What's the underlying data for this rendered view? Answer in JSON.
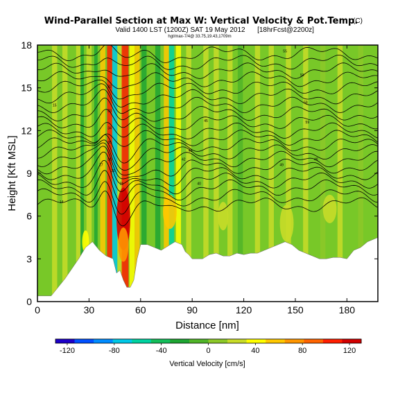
{
  "header": {
    "title": "Wind-Parallel Section at Max W: Vertical Velocity & Pot.Temp.",
    "title_mark": "(C)",
    "valid": "Valid 1400 LST (1200Z) SAT 19 May 2012",
    "forecast": "[18hrFcst@2200z]",
    "small_note": "hgt/max-7/4@ 33.75,19.43,1709m"
  },
  "chart_data": {
    "type": "heatmap",
    "xlabel": "Distance [nm]",
    "ylabel": "Height [Kft MSL]",
    "xlim": [
      0,
      198
    ],
    "ylim": [
      0,
      18
    ],
    "x_ticks": [
      "0",
      "30",
      "60",
      "90",
      "120",
      "150",
      "180"
    ],
    "x_tick_values": [
      0,
      30,
      60,
      90,
      120,
      150,
      180
    ],
    "y_ticks": [
      "0",
      "3",
      "6",
      "9",
      "12",
      "15",
      "18"
    ],
    "y_tick_values": [
      0,
      3,
      6,
      9,
      12,
      15,
      18
    ],
    "grid": false,
    "terrain_top_kft": [
      [
        0,
        0.4
      ],
      [
        8,
        0.4
      ],
      [
        12,
        1.0
      ],
      [
        16,
        1.6
      ],
      [
        20,
        2.3
      ],
      [
        24,
        3.0
      ],
      [
        28,
        3.8
      ],
      [
        32,
        4.2
      ],
      [
        36,
        3.6
      ],
      [
        40,
        3.2
      ],
      [
        44,
        3.0
      ],
      [
        46,
        2.0
      ],
      [
        48,
        2.2
      ],
      [
        50,
        1.5
      ],
      [
        52,
        1.0
      ],
      [
        54,
        1.0
      ],
      [
        56,
        1.5
      ],
      [
        58,
        3.0
      ],
      [
        60,
        4.0
      ],
      [
        64,
        4.0
      ],
      [
        68,
        3.8
      ],
      [
        72,
        3.6
      ],
      [
        76,
        3.9
      ],
      [
        80,
        4.2
      ],
      [
        84,
        4.0
      ],
      [
        86,
        3.5
      ],
      [
        88,
        3.3
      ],
      [
        90,
        3.0
      ],
      [
        96,
        3.0
      ],
      [
        100,
        3.3
      ],
      [
        104,
        3.4
      ],
      [
        108,
        3.2
      ],
      [
        112,
        3.2
      ],
      [
        116,
        3.4
      ],
      [
        120,
        3.3
      ],
      [
        124,
        3.4
      ],
      [
        128,
        3.4
      ],
      [
        132,
        3.6
      ],
      [
        136,
        3.8
      ],
      [
        140,
        4.0
      ],
      [
        144,
        4.2
      ],
      [
        148,
        4.0
      ],
      [
        152,
        3.6
      ],
      [
        156,
        3.4
      ],
      [
        160,
        3.2
      ],
      [
        164,
        3.0
      ],
      [
        168,
        3.0
      ],
      [
        172,
        3.1
      ],
      [
        176,
        3.1
      ],
      [
        180,
        3.0
      ],
      [
        184,
        3.6
      ],
      [
        188,
        3.8
      ],
      [
        192,
        4.2
      ],
      [
        198,
        4.5
      ]
    ],
    "vertical_velocity_bands": [
      {
        "x": 10,
        "width": 3,
        "w": 20
      },
      {
        "x": 16,
        "width": 3,
        "w": 30
      },
      {
        "x": 24,
        "width": 3,
        "w": 25
      },
      {
        "x": 26,
        "width": 2,
        "w": -20
      },
      {
        "x": 30,
        "width": 3,
        "w": 30
      },
      {
        "x": 34,
        "width": 2,
        "w": -30
      },
      {
        "x": 38,
        "width": 3,
        "w": 50
      },
      {
        "x": 42,
        "width": 3,
        "w": 110
      },
      {
        "x": 45,
        "width": 3,
        "w": -70
      },
      {
        "x": 48,
        "width": 3,
        "w": 30
      },
      {
        "x": 51,
        "width": 4,
        "w": 110
      },
      {
        "x": 55,
        "width": 3,
        "w": 35
      },
      {
        "x": 58,
        "width": 3,
        "w": 60
      },
      {
        "x": 62,
        "width": 3,
        "w": -20
      },
      {
        "x": 70,
        "width": 3,
        "w": -25
      },
      {
        "x": 75,
        "width": 3,
        "w": 55
      },
      {
        "x": 78,
        "width": 3,
        "w": -60
      },
      {
        "x": 82,
        "width": 3,
        "w": 35
      },
      {
        "x": 88,
        "width": 3,
        "w": 30
      },
      {
        "x": 98,
        "width": 3,
        "w": 25
      },
      {
        "x": 104,
        "width": 3,
        "w": 30
      },
      {
        "x": 112,
        "width": 3,
        "w": 30
      },
      {
        "x": 118,
        "width": 3,
        "w": -10
      },
      {
        "x": 128,
        "width": 3,
        "w": 25
      },
      {
        "x": 136,
        "width": 3,
        "w": 30
      },
      {
        "x": 146,
        "width": 3,
        "w": 25
      },
      {
        "x": 156,
        "width": 3,
        "w": 20
      },
      {
        "x": 166,
        "width": 3,
        "w": 15
      },
      {
        "x": 176,
        "width": 3,
        "w": 20
      },
      {
        "x": 188,
        "width": 3,
        "w": 15
      }
    ],
    "vertical_velocity_cells": [
      {
        "x": 50,
        "y": 5.8,
        "rx": 4,
        "ry": 2.2,
        "w": 115
      },
      {
        "x": 50,
        "y": 4.0,
        "rx": 3,
        "ry": 1.2,
        "w": 70
      },
      {
        "x": 77,
        "y": 6.3,
        "rx": 4,
        "ry": 1.2,
        "w": 55
      },
      {
        "x": 28,
        "y": 4.2,
        "rx": 2,
        "ry": 0.8,
        "w": 40
      },
      {
        "x": 108,
        "y": 6.0,
        "rx": 3,
        "ry": 1.0,
        "w": 25
      },
      {
        "x": 145,
        "y": 5.5,
        "rx": 4,
        "ry": 1.3,
        "w": 30
      },
      {
        "x": 170,
        "y": 6.5,
        "rx": 4,
        "ry": 1.0,
        "w": 25
      }
    ],
    "theta_contours_kft": [
      6.8,
      7.4,
      8.0,
      8.5,
      9.0,
      9.5,
      10.0,
      10.5,
      11.0,
      11.5,
      12.0,
      12.6,
      13.2,
      13.8,
      14.4,
      15.0,
      15.6,
      16.2,
      16.8,
      17.4
    ],
    "theta_contour_labels": [
      {
        "x": 14,
        "y": 6.9,
        "text": "14"
      },
      {
        "x": 10,
        "y": 13.7,
        "text": "15"
      },
      {
        "x": 37,
        "y": 9.5,
        "text": "17"
      },
      {
        "x": 44,
        "y": 9.1,
        "text": "20"
      },
      {
        "x": 49,
        "y": 8.2,
        "text": "21"
      },
      {
        "x": 42,
        "y": 15.0,
        "text": "32"
      },
      {
        "x": 42,
        "y": 13.3,
        "text": "33"
      },
      {
        "x": 42,
        "y": 12.1,
        "text": "34"
      },
      {
        "x": 42,
        "y": 11.1,
        "text": "35"
      },
      {
        "x": 42,
        "y": 9.9,
        "text": "36"
      },
      {
        "x": 85,
        "y": 9.9,
        "text": "42"
      },
      {
        "x": 89,
        "y": 10.5,
        "text": "43"
      },
      {
        "x": 94,
        "y": 8.2,
        "text": "40"
      },
      {
        "x": 98,
        "y": 12.6,
        "text": "45"
      },
      {
        "x": 142,
        "y": 9.5,
        "text": "49"
      },
      {
        "x": 162,
        "y": 9.9,
        "text": "48"
      },
      {
        "x": 144,
        "y": 17.5,
        "text": "55"
      },
      {
        "x": 154,
        "y": 15.8,
        "text": "53"
      },
      {
        "x": 156,
        "y": 13.9,
        "text": "58"
      },
      {
        "x": 157,
        "y": 12.5,
        "text": "59"
      }
    ]
  },
  "colorbar": {
    "label": "Vertical Velocity [cm/s]",
    "ticks": [
      "-120",
      "-80",
      "-40",
      "0",
      "40",
      "80",
      "120"
    ],
    "tick_values": [
      -120,
      -80,
      -40,
      0,
      40,
      80,
      120
    ],
    "range": [
      -130,
      130
    ],
    "colors": [
      "#1c00c8",
      "#0050ff",
      "#008cff",
      "#00c8e6",
      "#00d2a0",
      "#14be5a",
      "#1ea532",
      "#50b428",
      "#8cc828",
      "#c8dc28",
      "#ffff00",
      "#ffc800",
      "#ff9600",
      "#ff6400",
      "#ff1e00",
      "#d20000"
    ]
  },
  "colors": {
    "terrain": "#ffffff",
    "contour": "#000000",
    "background_field": "#78c828"
  }
}
